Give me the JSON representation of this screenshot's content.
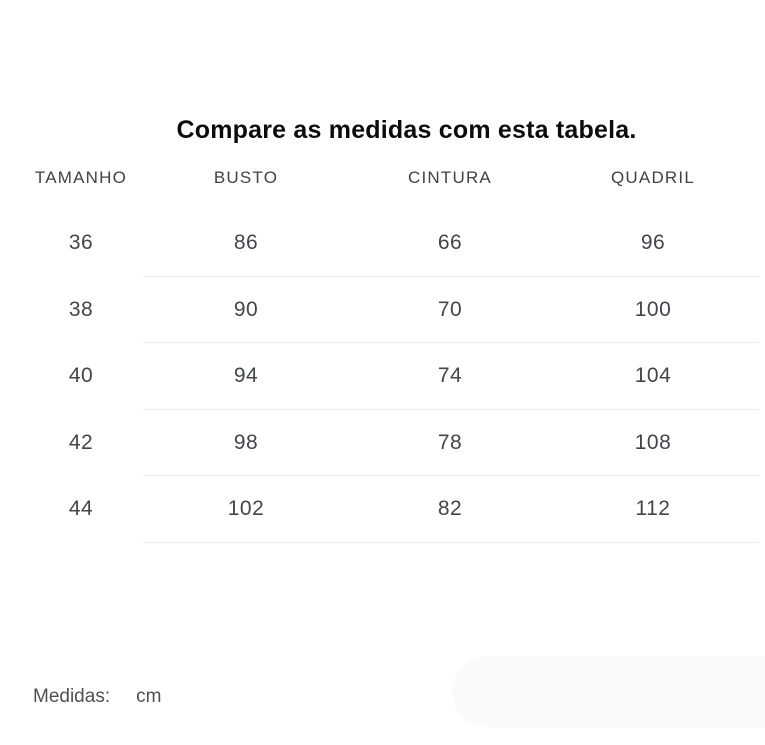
{
  "table": {
    "title": "Compare as medidas com esta tabela.",
    "columns": [
      "TAMANHO",
      "BUSTO",
      "CINTURA",
      "QUADRIL"
    ],
    "rows": [
      [
        "36",
        "86",
        "66",
        "96"
      ],
      [
        "38",
        "90",
        "70",
        "100"
      ],
      [
        "40",
        "94",
        "74",
        "104"
      ],
      [
        "42",
        "98",
        "78",
        "108"
      ],
      [
        "44",
        "102",
        "82",
        "112"
      ]
    ]
  },
  "footer": {
    "label": "Medidas:",
    "unit": "cm"
  },
  "colors": {
    "title_text": "#0c0c0c",
    "table_text": "#41464b",
    "header_text": "#3e4347",
    "divider": "#ececec",
    "pill_background": "#fafafa",
    "page_background": "#ffffff"
  }
}
